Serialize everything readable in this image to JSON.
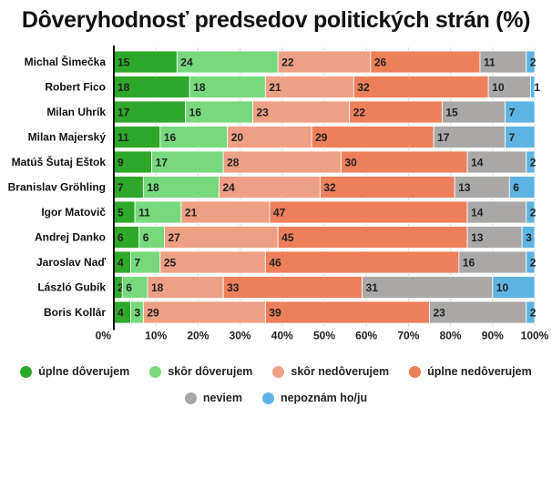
{
  "chart_data": {
    "type": "bar",
    "orientation": "horizontal",
    "stacked": true,
    "title": "Dôveryhodnosť predsedov politických strán (%)",
    "xlim": [
      0,
      100
    ],
    "xticks": [
      "0%",
      "10%",
      "20%",
      "30%",
      "40%",
      "50%",
      "60%",
      "70%",
      "80%",
      "90%",
      "100%"
    ],
    "grid": true,
    "legend_position": "bottom",
    "categories": [
      "Michal Šimečka",
      "Robert Fico",
      "Milan Uhrík",
      "Milan Majerský",
      "Matúš Šutaj Eštok",
      "Branislav Gröhling",
      "Igor Matovič",
      "Andrej Danko",
      "Jaroslav Naď",
      "László Gubík",
      "Boris Kollár"
    ],
    "series": [
      {
        "name": "úplne dôverujem",
        "color": "#2ea82b",
        "values": [
          15,
          18,
          17,
          11,
          9,
          7,
          5,
          6,
          4,
          2,
          4
        ]
      },
      {
        "name": "skôr dôverujem",
        "color": "#77d97c",
        "values": [
          24,
          18,
          16,
          16,
          17,
          18,
          11,
          6,
          7,
          6,
          3
        ]
      },
      {
        "name": "skôr nedôverujem",
        "color": "#eea084",
        "values": [
          22,
          21,
          23,
          20,
          28,
          24,
          21,
          27,
          25,
          18,
          29
        ]
      },
      {
        "name": "úplne nedôverujem",
        "color": "#ee7f5b",
        "values": [
          26,
          32,
          22,
          29,
          30,
          32,
          47,
          45,
          46,
          33,
          39
        ]
      },
      {
        "name": "neviem",
        "color": "#a9a8a6",
        "values": [
          11,
          10,
          15,
          17,
          14,
          13,
          14,
          13,
          16,
          31,
          23
        ]
      },
      {
        "name": "nepoznám ho/ju",
        "color": "#5db4e3",
        "values": [
          2,
          1,
          7,
          7,
          2,
          6,
          2,
          3,
          2,
          10,
          2
        ]
      }
    ]
  }
}
